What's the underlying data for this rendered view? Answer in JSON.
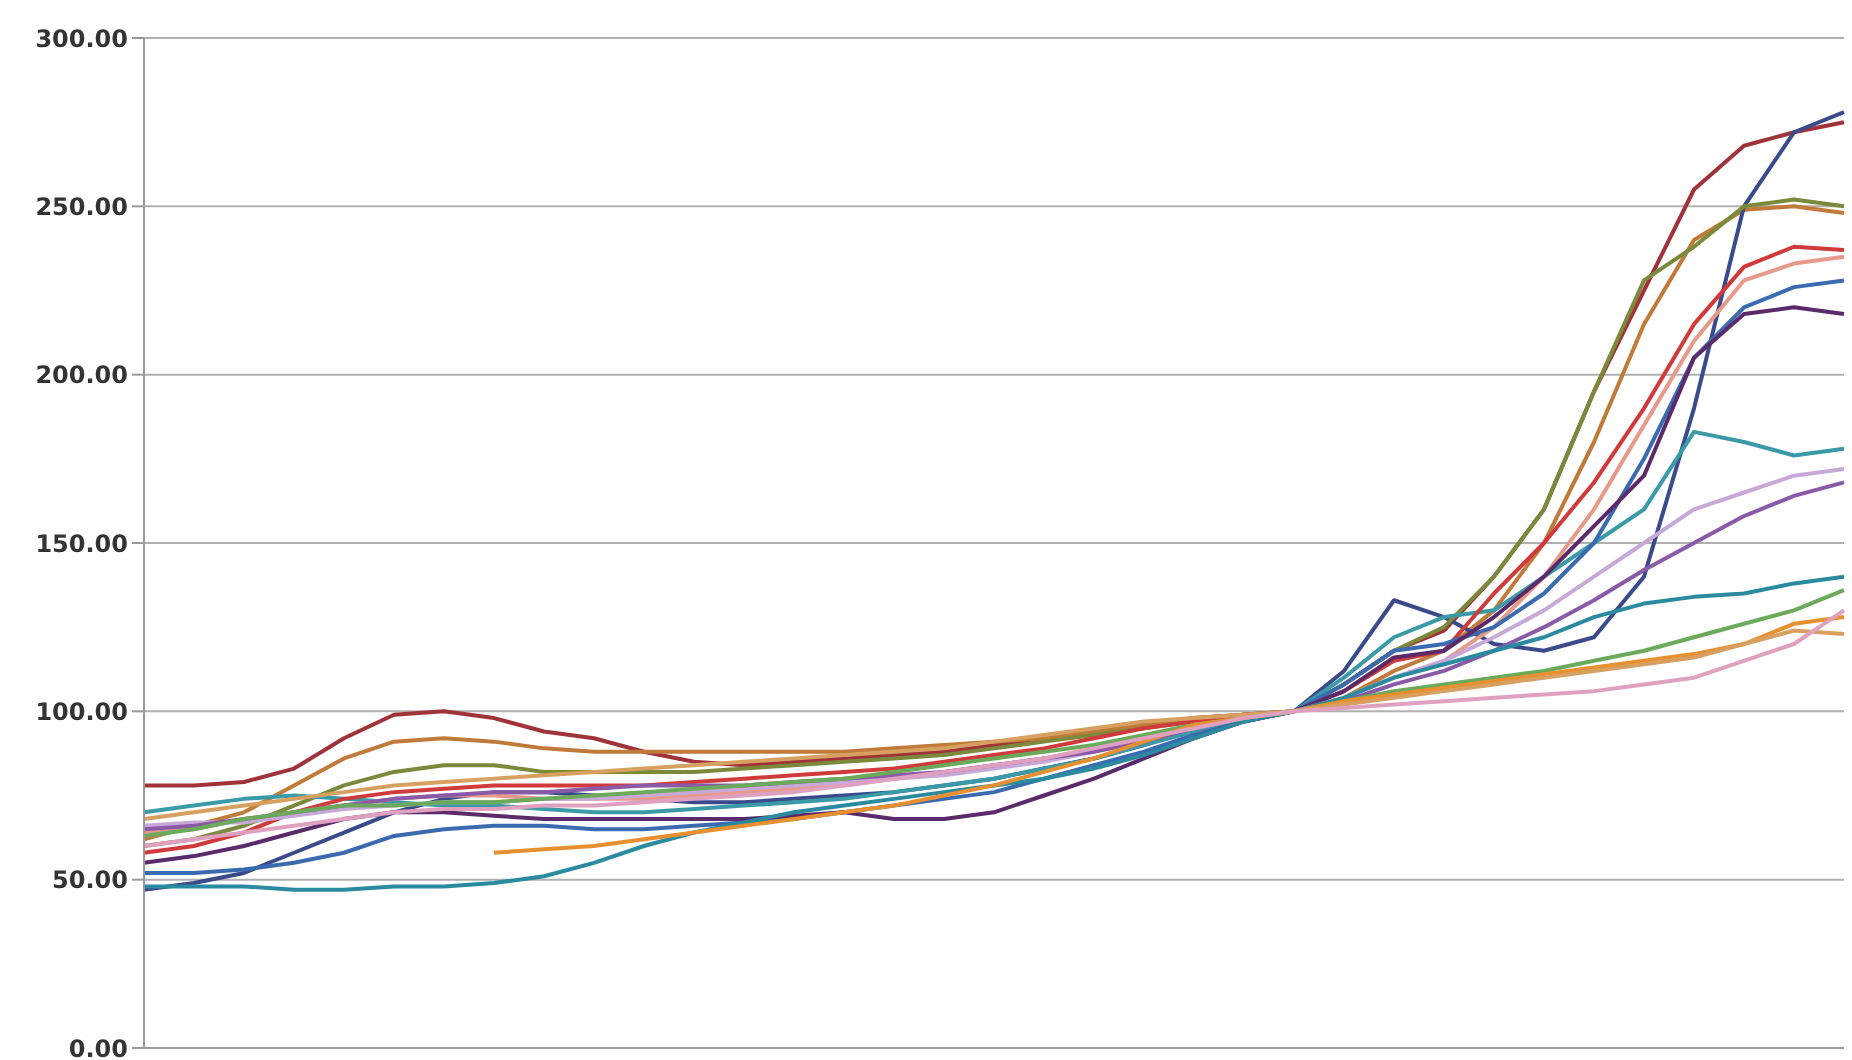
{
  "chart_data": {
    "type": "line",
    "categories": [
      null,
      null,
      null,
      null,
      null,
      null,
      null,
      null,
      null,
      null,
      null,
      null,
      null,
      null,
      null,
      null,
      null,
      null,
      null,
      null,
      null,
      null,
      null,
      null,
      null,
      null,
      null,
      null,
      null,
      null,
      null,
      null,
      null,
      null,
      null
    ],
    "ylim": [
      0,
      300
    ],
    "yticks": [
      {
        "value": 0,
        "label": "0.00"
      },
      {
        "value": 50,
        "label": "50.00"
      },
      {
        "value": 100,
        "label": "100.00"
      },
      {
        "value": 150,
        "label": "150.00"
      },
      {
        "value": 200,
        "label": "200.00"
      },
      {
        "value": 250,
        "label": "250.00"
      },
      {
        "value": 300,
        "label": "300.00"
      }
    ],
    "grid": "y",
    "tick_labels": "y",
    "marker": "none",
    "line_style": "solid",
    "series": [
      {
        "color": "#a0323a",
        "values": [
          78,
          78,
          79,
          83,
          92,
          99,
          100,
          98,
          94,
          92,
          88,
          85,
          84,
          85,
          86,
          87,
          88,
          90,
          92,
          94,
          96,
          98,
          99,
          100,
          108,
          118,
          124,
          140,
          160,
          195,
          225,
          255,
          268,
          272,
          275
        ]
      },
      {
        "color": "#c07a3a",
        "values": [
          62,
          66,
          70,
          78,
          86,
          91,
          92,
          91,
          89,
          88,
          88,
          88,
          88,
          88,
          88,
          89,
          90,
          91,
          92,
          94,
          96,
          98,
          99,
          100,
          104,
          112,
          118,
          130,
          150,
          180,
          215,
          240,
          249,
          250,
          248
        ]
      },
      {
        "color": "#3a4a8a",
        "values": [
          47,
          49,
          52,
          58,
          64,
          70,
          74,
          76,
          76,
          75,
          74,
          73,
          73,
          74,
          75,
          76,
          78,
          80,
          83,
          86,
          90,
          95,
          98,
          100,
          112,
          133,
          128,
          120,
          118,
          122,
          140,
          190,
          250,
          272,
          278
        ]
      },
      {
        "color": "#7a8a3a",
        "values": [
          60,
          62,
          66,
          72,
          78,
          82,
          84,
          84,
          82,
          82,
          82,
          82,
          83,
          84,
          85,
          86,
          87,
          89,
          91,
          93,
          95,
          97,
          99,
          100,
          108,
          118,
          125,
          140,
          160,
          195,
          228,
          238,
          250,
          252,
          250
        ]
      },
      {
        "color": "#3a9aa8",
        "values": [
          70,
          72,
          74,
          75,
          74,
          73,
          72,
          72,
          71,
          70,
          70,
          71,
          72,
          73,
          74,
          76,
          78,
          80,
          83,
          86,
          90,
          94,
          97,
          100,
          110,
          122,
          128,
          130,
          140,
          150,
          160,
          183,
          180,
          176,
          178
        ]
      },
      {
        "color": "#d03a3a",
        "values": [
          58,
          60,
          64,
          70,
          74,
          76,
          77,
          78,
          78,
          78,
          78,
          79,
          80,
          81,
          82,
          83,
          85,
          87,
          89,
          92,
          95,
          97,
          99,
          100,
          106,
          115,
          118,
          135,
          150,
          168,
          190,
          215,
          232,
          238,
          237
        ]
      },
      {
        "color": "#e89a8a",
        "values": [
          64,
          65,
          68,
          70,
          72,
          74,
          75,
          75,
          74,
          74,
          74,
          75,
          76,
          77,
          78,
          80,
          82,
          84,
          86,
          89,
          92,
          95,
          98,
          100,
          104,
          110,
          115,
          125,
          140,
          160,
          185,
          210,
          228,
          233,
          235
        ]
      },
      {
        "color": "#3a6ab0",
        "values": [
          52,
          52,
          53,
          55,
          58,
          63,
          65,
          66,
          66,
          65,
          65,
          66,
          67,
          68,
          70,
          72,
          74,
          76,
          80,
          84,
          88,
          93,
          97,
          100,
          108,
          118,
          120,
          125,
          135,
          150,
          175,
          205,
          220,
          226,
          228
        ]
      },
      {
        "color": "#5a2a6a",
        "values": [
          55,
          57,
          60,
          64,
          68,
          70,
          70,
          69,
          68,
          68,
          68,
          68,
          68,
          69,
          70,
          68,
          68,
          70,
          75,
          80,
          86,
          92,
          97,
          100,
          106,
          116,
          118,
          128,
          140,
          155,
          170,
          205,
          218,
          220,
          218
        ]
      },
      {
        "color": "#c8a8d8",
        "values": [
          66,
          67,
          67,
          69,
          71,
          72,
          73,
          73,
          74,
          74,
          75,
          76,
          77,
          78,
          79,
          80,
          81,
          83,
          85,
          88,
          92,
          95,
          98,
          100,
          104,
          110,
          115,
          122,
          130,
          140,
          150,
          160,
          165,
          170,
          172
        ]
      },
      {
        "color": "#8a5aa8",
        "values": [
          65,
          66,
          68,
          70,
          72,
          74,
          75,
          76,
          76,
          77,
          78,
          78,
          78,
          79,
          80,
          81,
          82,
          84,
          86,
          88,
          91,
          95,
          98,
          100,
          103,
          108,
          112,
          118,
          125,
          133,
          142,
          150,
          158,
          164,
          168
        ]
      },
      {
        "color": "#2a8aa0",
        "values": [
          48,
          48,
          48,
          47,
          47,
          48,
          48,
          49,
          51,
          55,
          60,
          64,
          67,
          70,
          72,
          74,
          76,
          78,
          80,
          83,
          87,
          92,
          97,
          100,
          104,
          110,
          114,
          118,
          122,
          128,
          132,
          134,
          135,
          138,
          140
        ]
      },
      {
        "color": "#6aaa5a",
        "values": [
          63,
          65,
          68,
          70,
          72,
          72,
          73,
          73,
          74,
          75,
          76,
          77,
          78,
          79,
          80,
          82,
          84,
          86,
          88,
          90,
          93,
          96,
          98,
          100,
          103,
          106,
          108,
          110,
          112,
          115,
          118,
          122,
          126,
          130,
          136
        ]
      },
      {
        "color": "#e89030",
        "values": [
          null,
          null,
          null,
          null,
          null,
          null,
          null,
          58,
          59,
          60,
          62,
          64,
          66,
          68,
          70,
          72,
          75,
          78,
          82,
          86,
          91,
          96,
          98,
          100,
          103,
          105,
          107,
          109,
          111,
          113,
          115,
          117,
          120,
          126,
          128
        ]
      },
      {
        "color": "#d8a060",
        "values": [
          68,
          70,
          72,
          74,
          76,
          78,
          79,
          80,
          81,
          82,
          83,
          84,
          85,
          86,
          87,
          88,
          89,
          91,
          93,
          95,
          97,
          98,
          99,
          100,
          102,
          104,
          106,
          108,
          110,
          112,
          114,
          116,
          120,
          124,
          123
        ]
      },
      {
        "color": "#e0a0c0",
        "values": [
          60,
          62,
          64,
          66,
          68,
          70,
          71,
          71,
          72,
          72,
          73,
          74,
          75,
          76,
          78,
          80,
          82,
          84,
          86,
          89,
          92,
          95,
          98,
          100,
          101,
          102,
          103,
          104,
          105,
          106,
          108,
          110,
          115,
          120,
          130
        ]
      }
    ]
  }
}
